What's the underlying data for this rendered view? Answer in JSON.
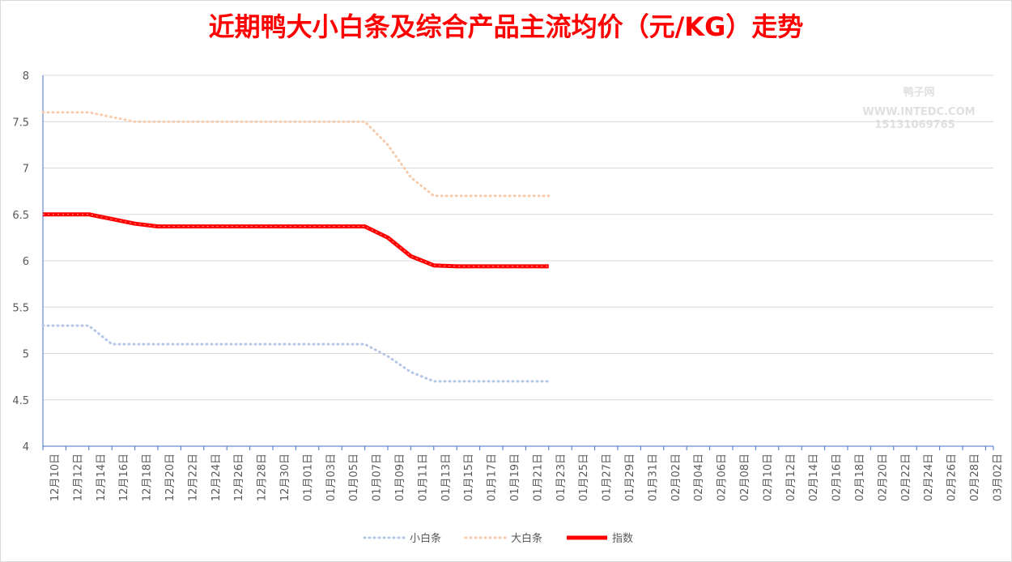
{
  "chart_data": {
    "type": "line",
    "title": "近期鸭大小白条及综合产品主流均价（元/KG）走势",
    "watermark": [
      "鸭子网",
      "WWW.INTEDC.COM",
      "15131069765"
    ],
    "categories": [
      "12月10日",
      "12月12日",
      "12月14日",
      "12月16日",
      "12月18日",
      "12月20日",
      "12月22日",
      "12月24日",
      "12月26日",
      "12月28日",
      "12月30日",
      "01月01日",
      "01月03日",
      "01月05日",
      "01月07日",
      "01月09日",
      "01月11日",
      "01月13日",
      "01月15日",
      "01月17日",
      "01月19日",
      "01月21日",
      "01月23日",
      "01月25日",
      "01月27日",
      "01月29日",
      "01月31日",
      "02月02日",
      "02月04日",
      "02月06日",
      "02月08日",
      "02月10日",
      "02月12日",
      "02月14日",
      "02月16日",
      "02月18日",
      "02月20日",
      "02月22日",
      "02月24日",
      "02月26日",
      "02月28日",
      "03月02日"
    ],
    "series": [
      {
        "name": "小白条",
        "color": "#b4c7e7",
        "style": "dotted",
        "values": [
          5.3,
          5.3,
          5.3,
          5.1,
          5.1,
          5.1,
          5.1,
          5.1,
          5.1,
          5.1,
          5.1,
          5.1,
          5.1,
          5.1,
          5.1,
          4.97,
          4.8,
          4.7,
          4.7,
          4.7,
          4.7,
          4.7,
          4.7,
          null,
          null,
          null,
          null,
          null,
          null,
          null,
          null,
          null,
          null,
          null,
          null,
          null,
          null,
          null,
          null,
          null,
          null,
          null
        ]
      },
      {
        "name": "大白条",
        "color": "#f8cbad",
        "style": "dotted",
        "values": [
          7.6,
          7.6,
          7.6,
          7.55,
          7.5,
          7.5,
          7.5,
          7.5,
          7.5,
          7.5,
          7.5,
          7.5,
          7.5,
          7.5,
          7.5,
          7.25,
          6.9,
          6.7,
          6.7,
          6.7,
          6.7,
          6.7,
          6.7,
          null,
          null,
          null,
          null,
          null,
          null,
          null,
          null,
          null,
          null,
          null,
          null,
          null,
          null,
          null,
          null,
          null,
          null,
          null
        ]
      },
      {
        "name": "指数",
        "color": "#ff0000",
        "style": "solid",
        "values": [
          6.5,
          6.5,
          6.5,
          6.45,
          6.4,
          6.37,
          6.37,
          6.37,
          6.37,
          6.37,
          6.37,
          6.37,
          6.37,
          6.37,
          6.37,
          6.25,
          6.05,
          5.95,
          5.94,
          5.94,
          5.94,
          5.94,
          5.94,
          null,
          null,
          null,
          null,
          null,
          null,
          null,
          null,
          null,
          null,
          null,
          null,
          null,
          null,
          null,
          null,
          null,
          null,
          null
        ]
      }
    ],
    "ylim": [
      4,
      8
    ],
    "yticks": [
      4,
      4.5,
      5,
      5.5,
      6,
      6.5,
      7,
      7.5,
      8
    ],
    "grid": true
  }
}
